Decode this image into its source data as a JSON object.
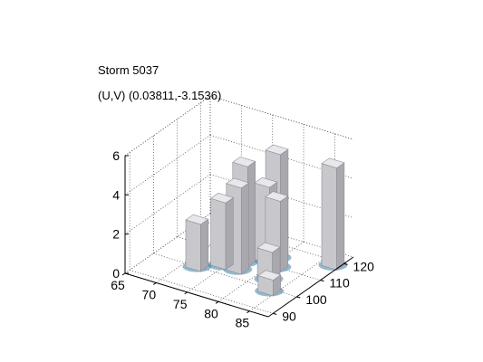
{
  "chart_data": {
    "type": "surface3d",
    "title": "Storm 5037",
    "subtitle": "(U,V) (0.03811,-3.1536)",
    "xlabel": "",
    "ylabel": "",
    "zlabel": "",
    "x_ticks": [
      "65",
      "70",
      "75",
      "80",
      "85"
    ],
    "y_ticks": [
      "90",
      "100",
      "110",
      "120"
    ],
    "z_ticks": [
      "0",
      "2",
      "4",
      "6"
    ],
    "xlim": [
      65,
      88
    ],
    "ylim": [
      88,
      124
    ],
    "zlim": [
      0,
      6
    ],
    "grid": true,
    "surfaces": [
      {
        "x": 72.0,
        "y": 100.0,
        "z": 2.4
      },
      {
        "x": 74.5,
        "y": 104.0,
        "z": 3.4
      },
      {
        "x": 76.5,
        "y": 108.0,
        "z": 5.1
      },
      {
        "x": 77.0,
        "y": 104.0,
        "z": 4.4
      },
      {
        "x": 78.5,
        "y": 112.0,
        "z": 3.9
      },
      {
        "x": 79.5,
        "y": 114.0,
        "z": 5.5
      },
      {
        "x": 81.0,
        "y": 110.0,
        "z": 3.6
      },
      {
        "x": 82.0,
        "y": 104.0,
        "z": 1.6
      },
      {
        "x": 84.0,
        "y": 99.0,
        "z": 0.8
      },
      {
        "x": 87.0,
        "y": 118.0,
        "z": 5.2
      }
    ],
    "colors": {
      "surface_face": "#c8c8cc",
      "surface_edge": "#8e8e94",
      "base_color": "#3a7fa8",
      "base_accent": "#5ab8b0",
      "grid_color": "#555555"
    }
  }
}
